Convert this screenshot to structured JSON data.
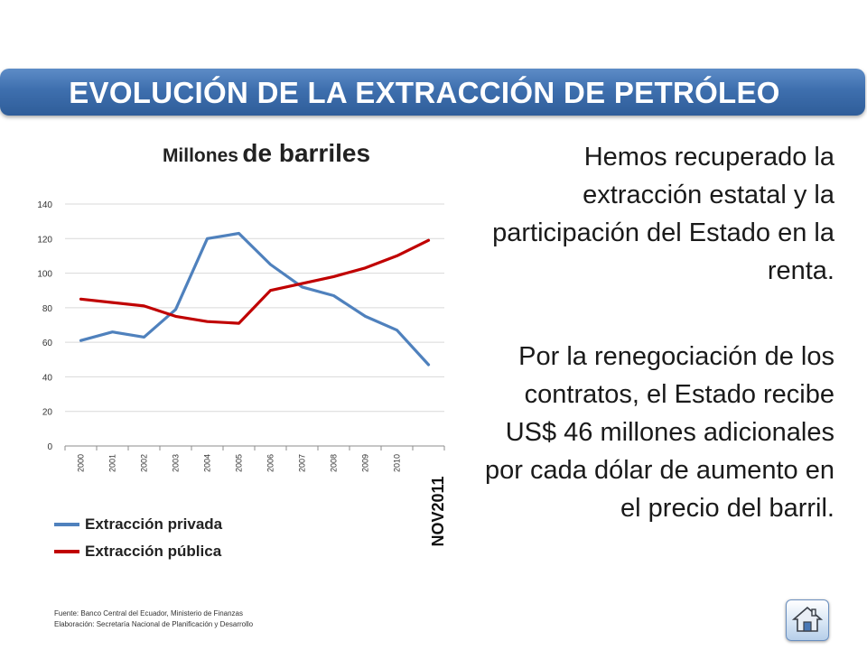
{
  "header": {
    "title": "EVOLUCIÓN DE LA EXTRACCIÓN DE PETRÓLEO"
  },
  "chart_title": {
    "part1": "Millones",
    "part2": "de barriles"
  },
  "chart_data": {
    "type": "line",
    "categories": [
      "2000",
      "2001",
      "2002",
      "2003",
      "2004",
      "2005",
      "2006",
      "2007",
      "2008",
      "2009",
      "2010",
      "NOV2011"
    ],
    "series": [
      {
        "name": "Extracción privada",
        "color": "#4f81bd",
        "values": [
          61,
          66,
          63,
          79,
          120,
          123,
          105,
          92,
          87,
          75,
          67,
          47
        ]
      },
      {
        "name": "Extracción pública",
        "color": "#c00000",
        "values": [
          85,
          83,
          81,
          75,
          72,
          71,
          90,
          94,
          98,
          103,
          110,
          119
        ]
      }
    ],
    "ylim": [
      0,
      140
    ],
    "yticks": [
      0,
      20,
      40,
      60,
      80,
      100,
      120,
      140
    ],
    "grid": true,
    "legend": "bottom-left"
  },
  "text": {
    "paragraph1": "Hemos recuperado la extracción estatal y la participación del Estado en la renta.",
    "paragraph2": "Por la renegociación de los contratos, el Estado recibe US$ 46 millones adicionales por cada dólar de aumento en el precio del barril."
  },
  "footer": {
    "source": "Fuente: Banco Central del Ecuador, Ministerio de Finanzas",
    "elaboration": "Elaboración: Secretaría Nacional de Planificación y Desarrollo"
  },
  "home_button": {
    "icon": "home-icon"
  }
}
